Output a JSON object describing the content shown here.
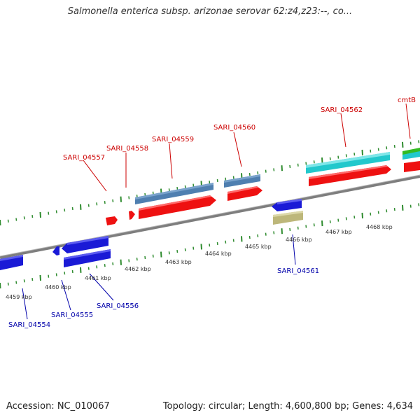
{
  "title": "Salmonella enterica subsp. arizonae serovar 62:z4,z23:--, co...",
  "footer": {
    "accession": "Accession: NC_010067",
    "stats": "Topology: circular; Length: 4,600,800 bp; Genes: 4,634"
  },
  "scale_labels": [
    "4459 kbp",
    "4460 kbp",
    "4461 kbp",
    "4462 kbp",
    "4463 kbp",
    "4464 kbp",
    "4465 kbp",
    "4466 kbp",
    "4467 kbp",
    "4468 kbp"
  ],
  "gene_labels_forward": [
    "SARI_04557",
    "SARI_04558",
    "SARI_04559",
    "SARI_04560",
    "SARI_04562",
    "cmtB"
  ],
  "gene_labels_reverse": [
    "SARI_04554",
    "SARI_04555",
    "SARI_04556",
    "SARI_04561"
  ],
  "colors": {
    "forward_label": "#cc0000",
    "reverse_label": "#0000aa",
    "cds_red": "#ee1111",
    "cds_blue": "#1a1ad6",
    "steel_blue": "#4f7fb0",
    "cyan": "#22c8cc",
    "green": "#33bb22",
    "khaki": "#bdb77a",
    "backbone": "#8a8a8a",
    "tick": "#2e8b2e"
  }
}
